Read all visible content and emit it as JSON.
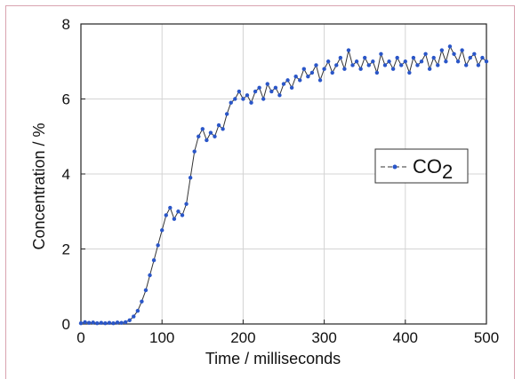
{
  "chart_data": {
    "type": "line",
    "xlabel": "Time /  milliseconds",
    "ylabel": "Concentration / %",
    "xlim": [
      0,
      500
    ],
    "ylim": [
      0,
      8
    ],
    "xticks": [
      0,
      100,
      200,
      300,
      400,
      500
    ],
    "yticks": [
      0,
      2,
      4,
      6,
      8
    ],
    "grid": true,
    "legend_position": "right-middle",
    "series": [
      {
        "name": "CO2",
        "legend_main": "CO",
        "legend_sub": "2",
        "color": "#2a56c8",
        "line_color": "#333333",
        "x": [
          0,
          5,
          10,
          15,
          20,
          25,
          30,
          35,
          40,
          45,
          50,
          55,
          60,
          65,
          70,
          75,
          80,
          85,
          90,
          95,
          100,
          105,
          110,
          115,
          120,
          125,
          130,
          135,
          140,
          145,
          150,
          155,
          160,
          165,
          170,
          175,
          180,
          185,
          190,
          195,
          200,
          205,
          210,
          215,
          220,
          225,
          230,
          235,
          240,
          245,
          250,
          255,
          260,
          265,
          270,
          275,
          280,
          285,
          290,
          295,
          300,
          305,
          310,
          315,
          320,
          325,
          330,
          335,
          340,
          345,
          350,
          355,
          360,
          365,
          370,
          375,
          380,
          385,
          390,
          395,
          400,
          405,
          410,
          415,
          420,
          425,
          430,
          435,
          440,
          445,
          450,
          455,
          460,
          465,
          470,
          475,
          480,
          485,
          490,
          495,
          500
        ],
        "y": [
          0.02,
          0.05,
          0.03,
          0.04,
          0.02,
          0.03,
          0.02,
          0.03,
          0.02,
          0.04,
          0.03,
          0.05,
          0.1,
          0.2,
          0.35,
          0.6,
          0.9,
          1.3,
          1.7,
          2.1,
          2.5,
          2.9,
          3.1,
          2.8,
          3.0,
          2.9,
          3.2,
          3.9,
          4.6,
          5.0,
          5.2,
          4.9,
          5.1,
          5.0,
          5.3,
          5.2,
          5.6,
          5.9,
          6.0,
          6.2,
          6.0,
          6.1,
          5.9,
          6.2,
          6.3,
          6.0,
          6.4,
          6.2,
          6.3,
          6.1,
          6.4,
          6.5,
          6.3,
          6.6,
          6.5,
          6.8,
          6.6,
          6.7,
          6.9,
          6.5,
          6.8,
          7.0,
          6.7,
          6.9,
          7.1,
          6.8,
          7.3,
          6.9,
          7.0,
          6.8,
          7.1,
          6.9,
          7.0,
          6.7,
          7.2,
          6.9,
          7.0,
          6.8,
          7.1,
          6.9,
          7.0,
          6.7,
          7.1,
          6.9,
          7.0,
          7.2,
          6.8,
          7.1,
          6.9,
          7.3,
          7.0,
          7.4,
          7.2,
          7.0,
          7.3,
          6.9,
          7.1,
          7.2,
          6.9,
          7.1,
          7.0
        ]
      }
    ]
  }
}
